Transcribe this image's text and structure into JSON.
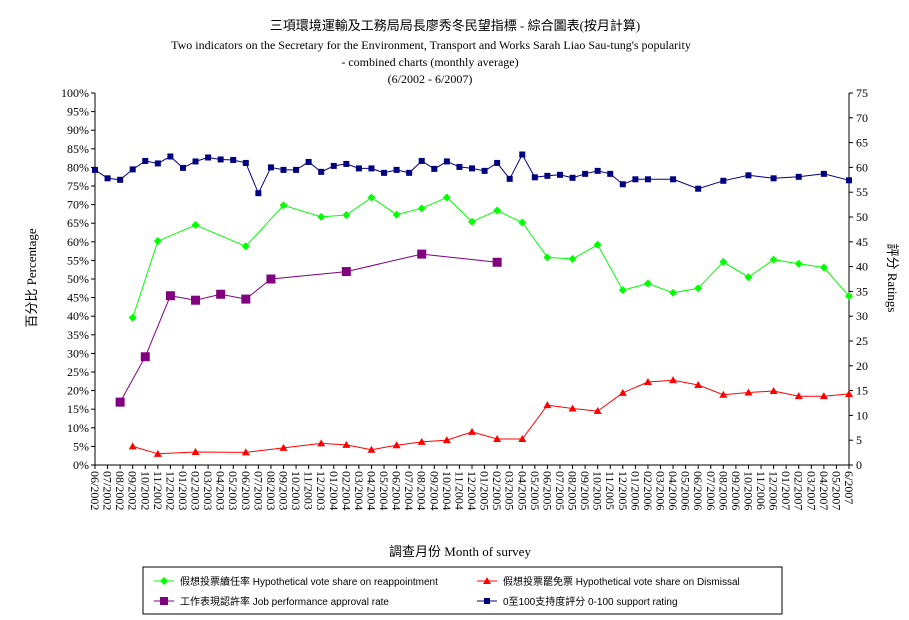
{
  "chart_data": {
    "type": "line",
    "title": "三項環境運輸及工務局局長廖秀冬民望指標 - 綜合圖表(按月計算)",
    "subtitle_lines": [
      "Two indicators on the Secretary for the Environment, Transport and Works Sarah Liao Sau-tung's popularity",
      "- combined charts (monthly average)",
      "(6/2002 - 6/2007)"
    ],
    "xlabel": "調查月份 Month of survey",
    "ylabel_left": "百分比 Percentage",
    "ylabel_right": "評分 Ratings",
    "ylim_left": [
      0,
      100
    ],
    "ylim_right": [
      0,
      75
    ],
    "left_ticks": [
      "0%",
      "5%",
      "10%",
      "15%",
      "20%",
      "25%",
      "30%",
      "35%",
      "40%",
      "45%",
      "50%",
      "55%",
      "60%",
      "65%",
      "70%",
      "75%",
      "80%",
      "85%",
      "90%",
      "95%",
      "100%"
    ],
    "right_ticks": [
      "0",
      "5",
      "10",
      "15",
      "20",
      "25",
      "30",
      "35",
      "40",
      "45",
      "50",
      "55",
      "60",
      "65",
      "70",
      "75"
    ],
    "categories": [
      "06/2002",
      "07/2002",
      "08/2002",
      "09/2002",
      "10/2002",
      "11/2002",
      "12/2002",
      "01/2003",
      "02/2003",
      "03/2003",
      "04/2003",
      "05/2003",
      "06/2003",
      "07/2003",
      "08/2003",
      "09/2003",
      "10/2003",
      "11/2003",
      "12/2003",
      "01/2004",
      "02/2004",
      "03/2004",
      "04/2004",
      "05/2004",
      "06/2004",
      "07/2004",
      "08/2004",
      "09/2004",
      "10/2004",
      "11/2004",
      "12/2004",
      "01/2005",
      "02/2005",
      "03/2005",
      "04/2005",
      "05/2005",
      "06/2005",
      "07/2005",
      "08/2005",
      "09/2005",
      "10/2005",
      "11/2005",
      "12/2005",
      "01/2006",
      "02/2006",
      "03/2006",
      "04/2006",
      "05/2006",
      "06/2006",
      "07/2006",
      "08/2006",
      "09/2006",
      "10/2006",
      "11/2006",
      "12/2006",
      "01/2007",
      "02/2007",
      "03/2007",
      "04/2007",
      "05/2007",
      "6/2007"
    ],
    "grid": false,
    "legend_position": "bottom",
    "series": [
      {
        "name": "假想投票續任率 Hypothetical vote share on reappointment",
        "axis": "left",
        "color": "#00ff00",
        "marker": "diamond",
        "points": [
          [
            "09/2002",
            39.6
          ],
          [
            "11/2002",
            60.2
          ],
          [
            "02/2003",
            64.5
          ],
          [
            "06/2003",
            58.8
          ],
          [
            "09/2003",
            69.8
          ],
          [
            "12/2003",
            66.7
          ],
          [
            "02/2004",
            67.2
          ],
          [
            "04/2004",
            71.9
          ],
          [
            "06/2004",
            67.3
          ],
          [
            "08/2004",
            69.0
          ],
          [
            "10/2004",
            71.9
          ],
          [
            "12/2004",
            65.4
          ],
          [
            "02/2005",
            68.4
          ],
          [
            "04/2005",
            65.2
          ],
          [
            "06/2005",
            55.8
          ],
          [
            "08/2005",
            55.4
          ],
          [
            "10/2005",
            59.2
          ],
          [
            "12/2005",
            47.0
          ],
          [
            "02/2006",
            48.8
          ],
          [
            "04/2006",
            46.3
          ],
          [
            "06/2006",
            47.5
          ],
          [
            "08/2006",
            54.6
          ],
          [
            "10/2006",
            50.5
          ],
          [
            "12/2006",
            55.2
          ],
          [
            "02/2007",
            54.1
          ],
          [
            "04/2007",
            53.1
          ],
          [
            "6/2007",
            45.4
          ]
        ]
      },
      {
        "name": "假想投票罷免票 Hypothetical vote share on Dismissal",
        "axis": "left",
        "color": "#ff0000",
        "marker": "triangle",
        "points": [
          [
            "09/2002",
            5.0
          ],
          [
            "11/2002",
            3.0
          ],
          [
            "02/2003",
            3.5
          ],
          [
            "06/2003",
            3.4
          ],
          [
            "09/2003",
            4.6
          ],
          [
            "12/2003",
            5.8
          ],
          [
            "02/2004",
            5.4
          ],
          [
            "04/2004",
            4.1
          ],
          [
            "06/2004",
            5.3
          ],
          [
            "08/2004",
            6.2
          ],
          [
            "10/2004",
            6.7
          ],
          [
            "12/2004",
            8.9
          ],
          [
            "02/2005",
            7.0
          ],
          [
            "04/2005",
            7.0
          ],
          [
            "06/2005",
            16.1
          ],
          [
            "08/2005",
            15.2
          ],
          [
            "10/2005",
            14.5
          ],
          [
            "12/2005",
            19.4
          ],
          [
            "02/2006",
            22.3
          ],
          [
            "04/2006",
            22.8
          ],
          [
            "06/2006",
            21.5
          ],
          [
            "08/2006",
            18.9
          ],
          [
            "10/2006",
            19.5
          ],
          [
            "12/2006",
            19.9
          ],
          [
            "02/2007",
            18.5
          ],
          [
            "04/2007",
            18.5
          ],
          [
            "6/2007",
            19.1
          ]
        ]
      },
      {
        "name": "工作表現認許率 Job performance approval rate",
        "axis": "left",
        "color": "#800080",
        "marker": "square",
        "points": [
          [
            "08/2002",
            16.9
          ],
          [
            "10/2002",
            29.1
          ],
          [
            "12/2002",
            45.5
          ],
          [
            "02/2003",
            44.3
          ],
          [
            "04/2003",
            45.9
          ],
          [
            "06/2003",
            44.6
          ],
          [
            "08/2003",
            50.0
          ],
          [
            "02/2004",
            52.0
          ],
          [
            "08/2004",
            56.7
          ],
          [
            "02/2005",
            54.5
          ]
        ]
      },
      {
        "name": "0至100支持度評分 0-100 support rating",
        "axis": "right",
        "color": "#000080",
        "marker": "small-square",
        "points": [
          [
            "06/2002",
            59.5
          ],
          [
            "07/2002",
            57.8
          ],
          [
            "08/2002",
            57.5
          ],
          [
            "09/2002",
            59.6
          ],
          [
            "10/2002",
            61.3
          ],
          [
            "11/2002",
            60.8
          ],
          [
            "12/2002",
            62.2
          ],
          [
            "01/2003",
            59.9
          ],
          [
            "02/2003",
            61.2
          ],
          [
            "03/2003",
            62.0
          ],
          [
            "04/2003",
            61.6
          ],
          [
            "05/2003",
            61.5
          ],
          [
            "06/2003",
            60.9
          ],
          [
            "07/2003",
            54.8
          ],
          [
            "08/2003",
            60.0
          ],
          [
            "09/2003",
            59.5
          ],
          [
            "10/2003",
            59.5
          ],
          [
            "11/2003",
            61.1
          ],
          [
            "12/2003",
            59.1
          ],
          [
            "01/2004",
            60.3
          ],
          [
            "02/2004",
            60.7
          ],
          [
            "03/2004",
            59.8
          ],
          [
            "04/2004",
            59.8
          ],
          [
            "05/2004",
            58.9
          ],
          [
            "06/2004",
            59.5
          ],
          [
            "07/2004",
            58.9
          ],
          [
            "08/2004",
            61.3
          ],
          [
            "09/2004",
            59.7
          ],
          [
            "10/2004",
            61.2
          ],
          [
            "11/2004",
            60.1
          ],
          [
            "12/2004",
            59.8
          ],
          [
            "01/2005",
            59.3
          ],
          [
            "02/2005",
            60.9
          ],
          [
            "03/2005",
            57.7
          ],
          [
            "04/2005",
            62.6
          ],
          [
            "05/2005",
            58.0
          ],
          [
            "06/2005",
            58.3
          ],
          [
            "07/2005",
            58.5
          ],
          [
            "08/2005",
            57.9
          ],
          [
            "09/2005",
            58.7
          ],
          [
            "10/2005",
            59.3
          ],
          [
            "11/2005",
            58.7
          ],
          [
            "12/2005",
            56.6
          ],
          [
            "01/2006",
            57.6
          ],
          [
            "02/2006",
            57.6
          ],
          [
            "04/2006",
            57.6
          ],
          [
            "06/2006",
            55.7
          ],
          [
            "08/2006",
            57.3
          ],
          [
            "10/2006",
            58.4
          ],
          [
            "12/2006",
            57.8
          ],
          [
            "02/2007",
            58.1
          ],
          [
            "04/2007",
            58.7
          ],
          [
            "6/2007",
            57.4
          ]
        ]
      }
    ]
  }
}
